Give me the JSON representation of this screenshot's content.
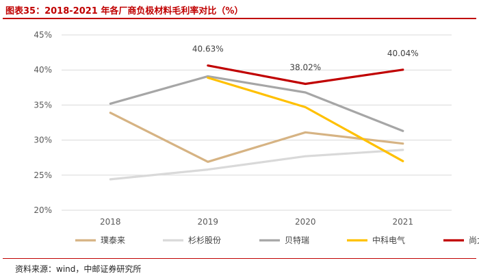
{
  "title": "图表35：2018-2021 年各厂商负极材料毛利率对比（%）",
  "source": "资料来源：wind，中邮证券研究所",
  "colors": {
    "title": "#c00000"
  },
  "chart_data": {
    "type": "line",
    "x": [
      "2018",
      "2019",
      "2020",
      "2021"
    ],
    "ylim": [
      20,
      45
    ],
    "yticks": [
      "20%",
      "25%",
      "30%",
      "35%",
      "40%",
      "45%"
    ],
    "grid": true,
    "legend_position": "bottom",
    "series": [
      {
        "name": "璞泰来",
        "color": "#d6b383",
        "values": [
          33.9,
          26.9,
          31.1,
          29.5
        ]
      },
      {
        "name": "杉杉股份",
        "color": "#d9d9d9",
        "values": [
          24.4,
          25.8,
          27.7,
          28.6
        ]
      },
      {
        "name": "贝特瑞",
        "color": "#a6a6a6",
        "values": [
          35.2,
          39.1,
          36.8,
          31.3
        ]
      },
      {
        "name": "中科电气",
        "color": "#ffc000",
        "values": [
          null,
          38.9,
          34.7,
          27.0
        ]
      },
      {
        "name": "尚太科技",
        "color": "#c00000",
        "values": [
          null,
          40.63,
          38.02,
          40.04
        ]
      }
    ],
    "annotations": [
      {
        "series": "尚太科技",
        "x": "2019",
        "text": "40.63%"
      },
      {
        "series": "尚太科技",
        "x": "2020",
        "text": "38.02%"
      },
      {
        "series": "尚太科技",
        "x": "2021",
        "text": "40.04%"
      }
    ]
  }
}
